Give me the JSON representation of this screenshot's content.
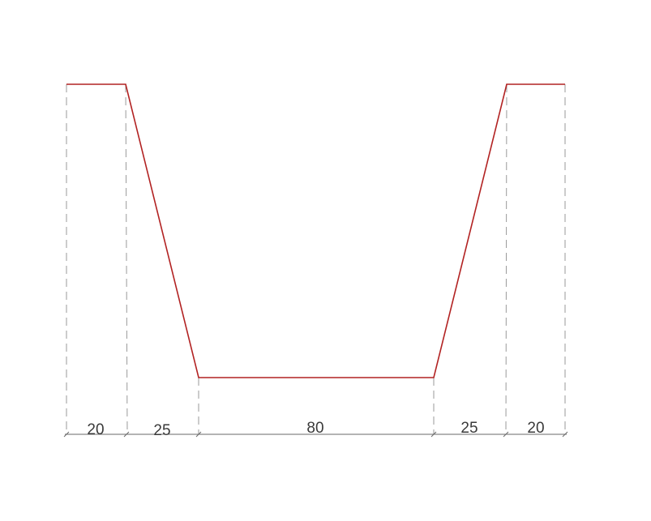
{
  "diagram": {
    "profile_color": "#b22222",
    "guide_color": "#9a9a9a",
    "dimension_line_color": "#6a6a6a",
    "text_color": "#3a3a3a",
    "dimensions": [
      {
        "label": "20"
      },
      {
        "label": "25"
      },
      {
        "label": "80"
      },
      {
        "label": "25"
      },
      {
        "label": "20"
      }
    ]
  }
}
